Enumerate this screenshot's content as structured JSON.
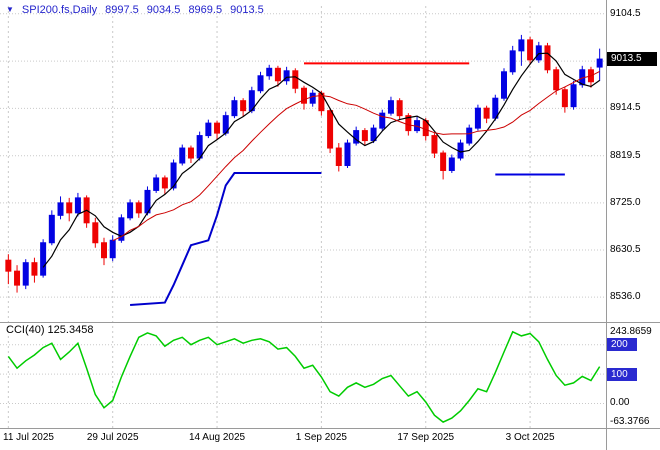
{
  "header": {
    "symbol_period": "SPI200.fs,Daily",
    "open": "8997.5",
    "high": "9034.5",
    "low": "8969.5",
    "close": "9013.5"
  },
  "price_axis": {
    "labels": [
      "9104.5",
      "8914.5",
      "8819.5",
      "8725.0",
      "8630.5",
      "8536.0"
    ],
    "label_prices": [
      9104.5,
      8914.5,
      8819.5,
      8725.0,
      8630.5,
      8536.0
    ],
    "grid_prices": [
      9104.5,
      9009.5,
      8914.5,
      8819.5,
      8725.0,
      8630.5,
      8536.0
    ],
    "current_price_tag": "9013.5",
    "current_price": 9013.5
  },
  "time_axis": {
    "labels": [
      "11 Jul 2025",
      "29 Jul 2025",
      "14 Aug 2025",
      "1 Sep 2025",
      "17 Sep 2025",
      "3 Oct 2025"
    ],
    "bars": [
      0,
      12,
      24,
      36,
      48,
      60
    ]
  },
  "indicator": {
    "label": "CCI(40) 125.3458",
    "name": "CCI",
    "period": 40,
    "current_value": 125.3458,
    "axis": [
      {
        "text": "243.8659",
        "value": 243.8659,
        "tag": false
      },
      {
        "text": "200",
        "value": 200,
        "tag": true
      },
      {
        "text": "100",
        "value": 100,
        "tag": true
      },
      {
        "text": "0.00",
        "value": 0,
        "tag": false
      },
      {
        "text": "-63.3766",
        "value": -63.3766,
        "tag": false
      }
    ]
  },
  "colors": {
    "up": "#0202e2",
    "down": "#ee0202",
    "ma_fast": "#000000",
    "ma_slow": "#cc0000",
    "step_line": "#0000cc",
    "trend_red": "#ff0000",
    "trend_blue": "#0000e0",
    "cci": "#00cc00",
    "grid": "#c9c9c9",
    "separator": "#9a9a9a",
    "header_text": "#2424cc",
    "tag_bg": "#000000",
    "level_tag_bg": "#2a2ad0"
  },
  "chart_data": {
    "type": "candlestick",
    "symbol": "SPI200.fs",
    "timeframe": "Daily",
    "title": "SPI200.fs,Daily 8997.5 9034.5 8969.5 9013.5",
    "price_range": [
      8490,
      9120
    ],
    "ohlc": [
      [
        8610,
        8622,
        8562,
        8588
      ],
      [
        8588,
        8600,
        8545,
        8560
      ],
      [
        8560,
        8612,
        8552,
        8605
      ],
      [
        8605,
        8615,
        8565,
        8580
      ],
      [
        8580,
        8652,
        8575,
        8645
      ],
      [
        8645,
        8710,
        8640,
        8700
      ],
      [
        8700,
        8738,
        8692,
        8725
      ],
      [
        8725,
        8735,
        8688,
        8705
      ],
      [
        8705,
        8745,
        8698,
        8735
      ],
      [
        8735,
        8740,
        8675,
        8685
      ],
      [
        8685,
        8695,
        8635,
        8645
      ],
      [
        8645,
        8655,
        8600,
        8615
      ],
      [
        8615,
        8660,
        8608,
        8650
      ],
      [
        8650,
        8702,
        8645,
        8695
      ],
      [
        8695,
        8732,
        8690,
        8725
      ],
      [
        8725,
        8730,
        8695,
        8705
      ],
      [
        8705,
        8758,
        8700,
        8750
      ],
      [
        8750,
        8782,
        8745,
        8775
      ],
      [
        8775,
        8780,
        8742,
        8755
      ],
      [
        8755,
        8812,
        8750,
        8805
      ],
      [
        8805,
        8842,
        8800,
        8835
      ],
      [
        8835,
        8840,
        8805,
        8815
      ],
      [
        8815,
        8868,
        8810,
        8860
      ],
      [
        8860,
        8892,
        8855,
        8885
      ],
      [
        8885,
        8890,
        8852,
        8865
      ],
      [
        8865,
        8908,
        8860,
        8900
      ],
      [
        8900,
        8938,
        8895,
        8930
      ],
      [
        8930,
        8935,
        8898,
        8910
      ],
      [
        8910,
        8958,
        8905,
        8950
      ],
      [
        8950,
        8988,
        8945,
        8980
      ],
      [
        8980,
        9002,
        8972,
        8995
      ],
      [
        8995,
        9000,
        8958,
        8970
      ],
      [
        8970,
        8998,
        8962,
        8990
      ],
      [
        8990,
        8995,
        8945,
        8955
      ],
      [
        8955,
        8960,
        8912,
        8925
      ],
      [
        8925,
        8952,
        8918,
        8945
      ],
      [
        8945,
        8950,
        8900,
        8910
      ],
      [
        8910,
        8915,
        8825,
        8835
      ],
      [
        8835,
        8845,
        8788,
        8800
      ],
      [
        8800,
        8852,
        8795,
        8845
      ],
      [
        8845,
        8878,
        8840,
        8870
      ],
      [
        8870,
        8875,
        8840,
        8850
      ],
      [
        8850,
        8882,
        8845,
        8875
      ],
      [
        8875,
        8912,
        8870,
        8905
      ],
      [
        8905,
        8938,
        8900,
        8930
      ],
      [
        8930,
        8935,
        8892,
        8900
      ],
      [
        8900,
        8905,
        8860,
        8870
      ],
      [
        8870,
        8898,
        8865,
        8890
      ],
      [
        8890,
        8895,
        8850,
        8860
      ],
      [
        8860,
        8865,
        8815,
        8825
      ],
      [
        8825,
        8830,
        8772,
        8790
      ],
      [
        8790,
        8822,
        8785,
        8815
      ],
      [
        8815,
        8852,
        8810,
        8845
      ],
      [
        8845,
        8882,
        8840,
        8875
      ],
      [
        8875,
        8922,
        8870,
        8915
      ],
      [
        8915,
        8920,
        8885,
        8895
      ],
      [
        8895,
        8942,
        8890,
        8935
      ],
      [
        8935,
        8995,
        8930,
        8988
      ],
      [
        8988,
        9040,
        8982,
        9030
      ],
      [
        9030,
        9062,
        9000,
        9052
      ],
      [
        9052,
        9058,
        9002,
        9012
      ],
      [
        9012,
        9048,
        9006,
        9040
      ],
      [
        9040,
        9046,
        8985,
        8992
      ],
      [
        8992,
        8998,
        8942,
        8952
      ],
      [
        8952,
        8958,
        8906,
        8918
      ],
      [
        8918,
        8970,
        8912,
        8962
      ],
      [
        8962,
        9000,
        8956,
        8992
      ],
      [
        8992,
        8998,
        8956,
        8968
      ],
      [
        8997.5,
        9034.5,
        8969.5,
        9013.5
      ]
    ],
    "overlays": {
      "ma_fast": {
        "type": "sma",
        "period": 5,
        "color": "#000000"
      },
      "ma_slow": {
        "type": "sma",
        "period": 13,
        "color": "#cc0000"
      },
      "blue_step_line": {
        "points_bar_price": [
          [
            14,
            8520
          ],
          [
            18,
            8525
          ],
          [
            19,
            8560
          ],
          [
            20,
            8600
          ],
          [
            21,
            8640
          ],
          [
            23,
            8650
          ],
          [
            24,
            8700
          ],
          [
            25,
            8760
          ],
          [
            26,
            8785
          ],
          [
            36,
            8785
          ]
        ]
      },
      "red_hline": {
        "price": 9005,
        "from_bar": 34,
        "to_bar": 53
      },
      "blue_hline": {
        "price": 8782,
        "from_bar": 56,
        "to_bar": 64
      }
    },
    "cci": {
      "period": 40,
      "range": [
        -63.3766,
        243.8659
      ],
      "levels": [
        200,
        100,
        0
      ],
      "values": [
        160,
        120,
        145,
        165,
        190,
        205,
        150,
        175,
        205,
        120,
        30,
        -15,
        10,
        90,
        160,
        225,
        240,
        230,
        195,
        215,
        225,
        200,
        215,
        225,
        200,
        210,
        220,
        205,
        215,
        220,
        210,
        185,
        190,
        160,
        120,
        130,
        90,
        40,
        25,
        55,
        70,
        55,
        65,
        85,
        95,
        60,
        25,
        40,
        5,
        -40,
        -63.3766,
        -50,
        -25,
        10,
        50,
        40,
        105,
        175,
        243.8659,
        230,
        238,
        210,
        150,
        95,
        62,
        70,
        92,
        78,
        125.3458
      ]
    }
  }
}
